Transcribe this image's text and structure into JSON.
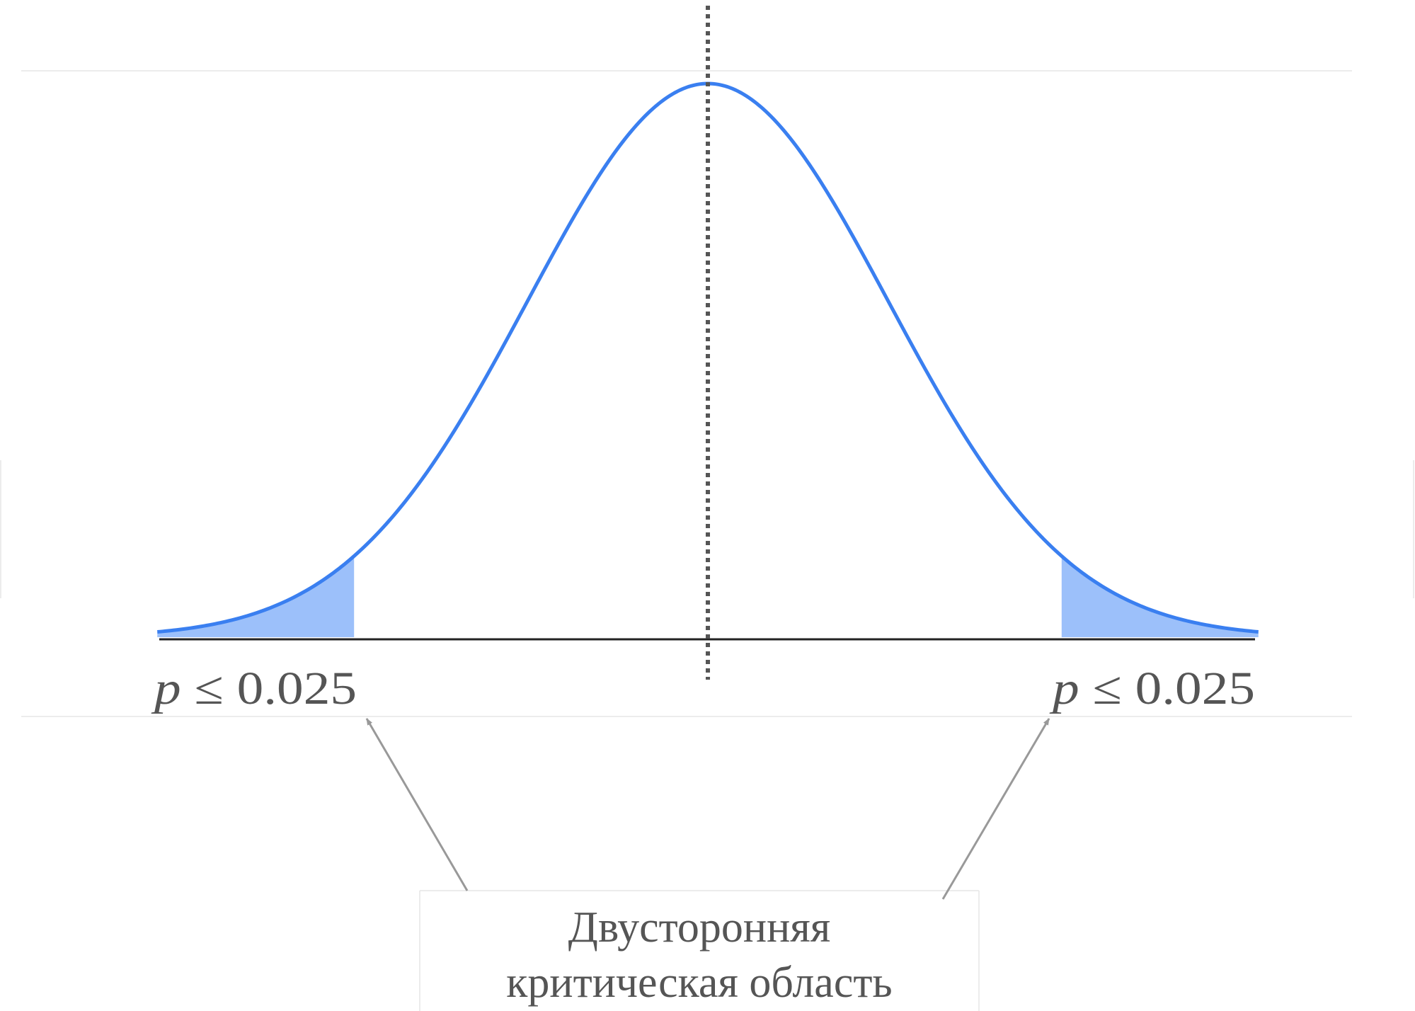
{
  "distribution": "normal",
  "tail_shading": {
    "left": {
      "from_z": -3.5,
      "to_z": -1.96
    },
    "right": {
      "from_z": 1.96,
      "to_z": 3.5
    }
  },
  "labels": {
    "left_tail": {
      "var": "p",
      "rest": " ≤ 0.025"
    },
    "right_tail": {
      "var": "p",
      "rest": " ≤ 0.025"
    }
  },
  "caption": {
    "line1": "Двусторонняя",
    "line2": "критическая область"
  },
  "colors": {
    "curve": "#3a7ff0",
    "tail_fill": "#9cc0fa",
    "axis": "#222222",
    "mean_line": "#555555",
    "arrow": "#999999",
    "text": "#555555"
  }
}
